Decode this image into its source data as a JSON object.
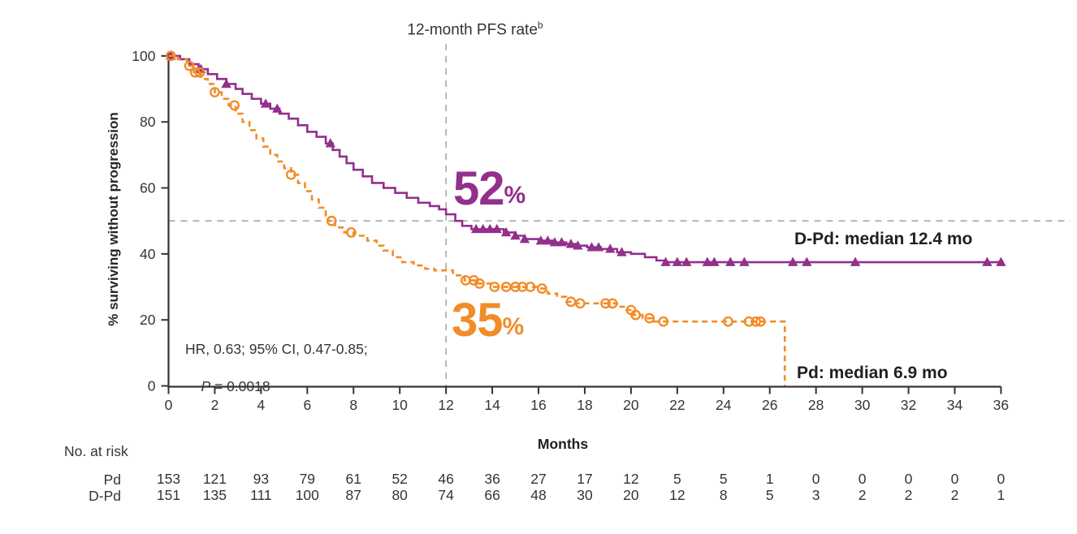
{
  "figure": {
    "title": "12-month PFS rate",
    "title_superscript": "b",
    "background": "#ffffff",
    "axis_color": "#3a3233",
    "text_color": "#2b2523"
  },
  "chart_data": {
    "type": "line",
    "subtype": "kaplan-meier-step",
    "title": "12-month PFS rate",
    "xlabel": "Months",
    "ylabel": "% surviving without progression",
    "xlim": [
      0,
      36
    ],
    "ylim": [
      0,
      100
    ],
    "xticks": [
      0,
      2,
      4,
      6,
      8,
      10,
      12,
      14,
      16,
      18,
      20,
      22,
      24,
      26,
      28,
      30,
      32,
      34,
      36
    ],
    "yticks": [
      0,
      20,
      40,
      60,
      80,
      100
    ],
    "grid": false,
    "legend_position": "none",
    "reference_lines": {
      "vertical_at_month": 12,
      "horizontal_at_pct": 50,
      "color": "#a8a8a8",
      "style": "dashed"
    },
    "annotations": {
      "hr_text": "HR, 0.63; 95% CI, 0.47-0.85;",
      "p_label": "P",
      "p_value": " = 0.0018"
    },
    "series": [
      {
        "name": "D-Pd",
        "color": "#92308C",
        "line_style": "solid",
        "marker": "filled-triangle",
        "rate_12mo_pct": 52,
        "rate_12mo_label": "52",
        "rate_12mo_suffix": "%",
        "median_months": 12.4,
        "median_label": "D-Pd: median 12.4 mo",
        "steps": [
          [
            0,
            100
          ],
          [
            0.5,
            99
          ],
          [
            0.9,
            97.5
          ],
          [
            1.3,
            96
          ],
          [
            1.7,
            94.5
          ],
          [
            2.1,
            93
          ],
          [
            2.5,
            91.5
          ],
          [
            2.9,
            90
          ],
          [
            3.2,
            88.5
          ],
          [
            3.6,
            87
          ],
          [
            4.0,
            85.5
          ],
          [
            4.4,
            84
          ],
          [
            4.8,
            82.5
          ],
          [
            5.2,
            81
          ],
          [
            5.6,
            79
          ],
          [
            6.0,
            77
          ],
          [
            6.4,
            75.5
          ],
          [
            6.8,
            73.5
          ],
          [
            7.1,
            71.5
          ],
          [
            7.4,
            69.5
          ],
          [
            7.7,
            67.5
          ],
          [
            8.0,
            65.5
          ],
          [
            8.4,
            63.5
          ],
          [
            8.8,
            61.5
          ],
          [
            9.3,
            60
          ],
          [
            9.8,
            58.5
          ],
          [
            10.3,
            57
          ],
          [
            10.8,
            55.5
          ],
          [
            11.3,
            54.5
          ],
          [
            11.7,
            53.5
          ],
          [
            12.0,
            52
          ],
          [
            12.4,
            50
          ],
          [
            12.7,
            48.5
          ],
          [
            13.1,
            47.5
          ],
          [
            14.5,
            46.5
          ],
          [
            15.0,
            45.5
          ],
          [
            15.4,
            44.5
          ],
          [
            16.0,
            44
          ],
          [
            16.6,
            43.5
          ],
          [
            17.2,
            43
          ],
          [
            17.6,
            42.5
          ],
          [
            18.1,
            42
          ],
          [
            18.7,
            41.5
          ],
          [
            19.4,
            40.5
          ],
          [
            20.0,
            40
          ],
          [
            20.6,
            39
          ],
          [
            21.1,
            38
          ],
          [
            21.5,
            37.5
          ],
          [
            36.0,
            37.5
          ]
        ],
        "censor_months": [
          0.1,
          1.4,
          2.5,
          4.2,
          4.7,
          7.0,
          13.3,
          13.6,
          13.9,
          14.2,
          14.6,
          15.0,
          15.4,
          16.1,
          16.4,
          16.7,
          17.0,
          17.4,
          17.7,
          18.3,
          18.6,
          19.1,
          19.6,
          21.5,
          22.0,
          22.4,
          23.3,
          23.6,
          24.3,
          24.9,
          27.0,
          27.6,
          29.7,
          35.4,
          36.0
        ]
      },
      {
        "name": "Pd",
        "color": "#F28C28",
        "line_style": "dashed",
        "marker": "open-circle",
        "rate_12mo_pct": 35,
        "rate_12mo_label": "35",
        "rate_12mo_suffix": "%",
        "median_months": 6.9,
        "median_label": "Pd: median 6.9 mo",
        "steps": [
          [
            0,
            100
          ],
          [
            0.4,
            99
          ],
          [
            0.8,
            97
          ],
          [
            1.1,
            95
          ],
          [
            1.4,
            93
          ],
          [
            1.7,
            91.5
          ],
          [
            2.0,
            89
          ],
          [
            2.3,
            87
          ],
          [
            2.6,
            85
          ],
          [
            2.9,
            82.5
          ],
          [
            3.2,
            80
          ],
          [
            3.5,
            77.5
          ],
          [
            3.8,
            75
          ],
          [
            4.1,
            72.5
          ],
          [
            4.4,
            70
          ],
          [
            4.7,
            68
          ],
          [
            5.0,
            66
          ],
          [
            5.3,
            64
          ],
          [
            5.6,
            61.5
          ],
          [
            5.9,
            59
          ],
          [
            6.2,
            56.5
          ],
          [
            6.5,
            54
          ],
          [
            6.8,
            51.5
          ],
          [
            6.9,
            50
          ],
          [
            7.2,
            48
          ],
          [
            7.6,
            46.5
          ],
          [
            8.0,
            45.5
          ],
          [
            8.6,
            44
          ],
          [
            9.0,
            42.5
          ],
          [
            9.3,
            41
          ],
          [
            9.7,
            39
          ],
          [
            10.1,
            37.5
          ],
          [
            10.6,
            36.5
          ],
          [
            11.1,
            35.5
          ],
          [
            11.5,
            35
          ],
          [
            12.3,
            33.5
          ],
          [
            12.8,
            32
          ],
          [
            13.3,
            31
          ],
          [
            14.0,
            30
          ],
          [
            16.0,
            29.5
          ],
          [
            16.4,
            28
          ],
          [
            16.8,
            27
          ],
          [
            17.2,
            25.5
          ],
          [
            17.6,
            25
          ],
          [
            19.4,
            24
          ],
          [
            19.8,
            23
          ],
          [
            20.1,
            21.5
          ],
          [
            20.5,
            20.5
          ],
          [
            20.9,
            19.5
          ],
          [
            26.6,
            19.5
          ],
          [
            26.65,
            0
          ]
        ],
        "censor_months": [
          0.1,
          0.9,
          1.15,
          1.35,
          2.0,
          2.85,
          5.3,
          7.05,
          7.9,
          12.85,
          13.2,
          13.45,
          14.1,
          14.6,
          15.0,
          15.3,
          15.65,
          16.15,
          17.4,
          17.8,
          18.9,
          19.2,
          20.0,
          20.2,
          20.8,
          21.4,
          24.2,
          25.1,
          25.4,
          25.6
        ]
      }
    ],
    "at_risk": {
      "title": "No. at risk",
      "months": [
        0,
        2,
        4,
        6,
        8,
        10,
        12,
        14,
        16,
        18,
        20,
        22,
        24,
        26,
        28,
        30,
        32,
        34,
        36
      ],
      "rows": [
        {
          "name": "Pd",
          "values": [
            153,
            121,
            93,
            79,
            61,
            52,
            46,
            36,
            27,
            17,
            12,
            5,
            5,
            1,
            0,
            0,
            0,
            0,
            0
          ]
        },
        {
          "name": "D-Pd",
          "values": [
            151,
            135,
            111,
            100,
            87,
            80,
            74,
            66,
            48,
            30,
            20,
            12,
            8,
            5,
            3,
            2,
            2,
            2,
            1
          ]
        }
      ]
    }
  }
}
